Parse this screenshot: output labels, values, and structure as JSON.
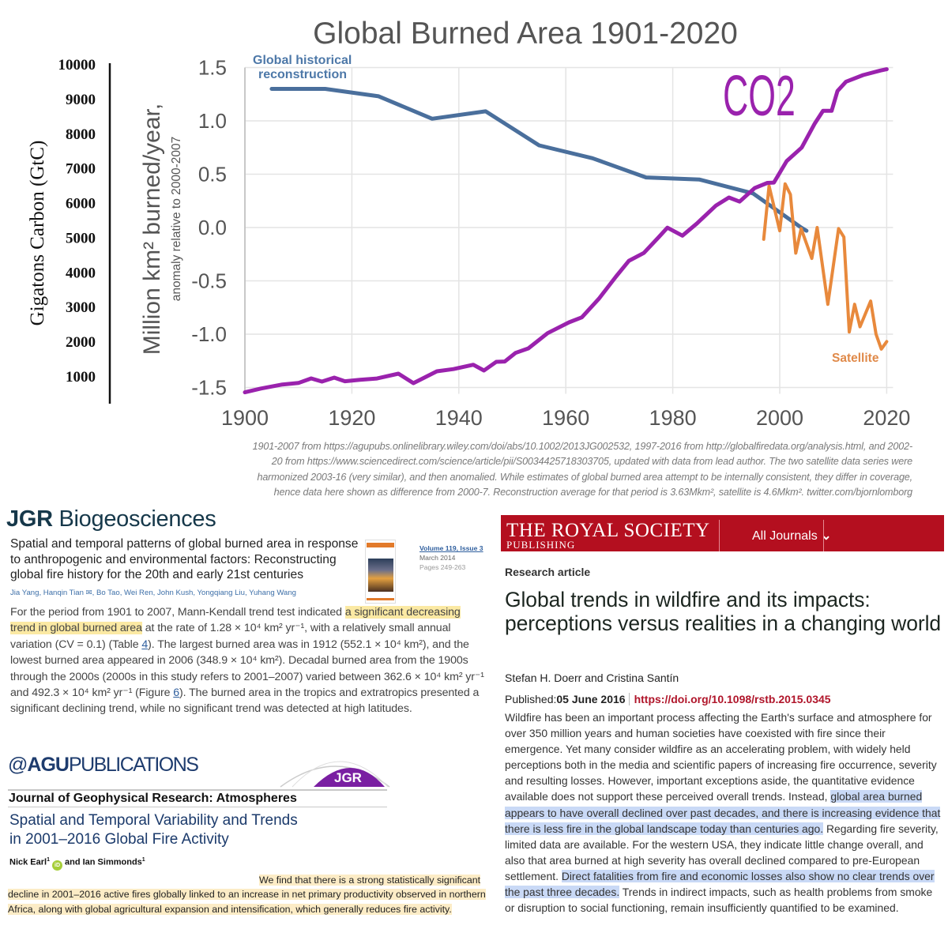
{
  "chart_data": {
    "type": "line",
    "title": "Global Burned Area 1901-2020",
    "xlabel": "",
    "ylabel": "Million km² burned/year,",
    "ylabel_sub": "anomaly relative to 2000-2007",
    "y2label": "Gigatons Carbon (GtC)",
    "xlim": [
      1900,
      2020
    ],
    "ylim": [
      -1.5,
      1.5
    ],
    "y2lim": [
      1000,
      10000
    ],
    "xticks": [
      "1900",
      "1920",
      "1940",
      "1960",
      "1980",
      "2000",
      "2020"
    ],
    "yticks": [
      "1.5",
      "1.0",
      "0.5",
      "0.0",
      "-0.5",
      "-1.0",
      "-1.5"
    ],
    "y2ticks": [
      "10000",
      "9000",
      "8000",
      "7000",
      "6000",
      "5000",
      "4000",
      "3000",
      "2000",
      "1000"
    ],
    "grid": true,
    "series": [
      {
        "name": "Global historical reconstruction",
        "label_lines": [
          "Global historical",
          "reconstruction"
        ],
        "axis": "left-anomaly",
        "color": "#4a6f9c",
        "x": [
          1905,
          1915,
          1925,
          1935,
          1945,
          1955,
          1965,
          1975,
          1985,
          1995,
          2004,
          2005
        ],
        "y": [
          1.3,
          1.3,
          1.23,
          1.02,
          1.09,
          0.77,
          0.65,
          0.47,
          0.45,
          0.32,
          0.0,
          -0.03
        ]
      },
      {
        "name": "Satellite",
        "axis": "left-anomaly",
        "color": "#e8893c",
        "x": [
          1997,
          1998,
          2000,
          2001,
          2002,
          2003,
          2004,
          2006,
          2007,
          2009,
          2011,
          2012,
          2013,
          2014,
          2015,
          2017,
          2018,
          2019,
          2020
        ],
        "y": [
          -0.11,
          0.39,
          -0.03,
          0.41,
          0.31,
          -0.24,
          -0.01,
          -0.29,
          0.0,
          -0.72,
          -0.01,
          -0.09,
          -0.98,
          -0.72,
          -0.93,
          -0.69,
          -1.0,
          -1.14,
          -1.07
        ]
      },
      {
        "name": "CO2",
        "axis": "gtc",
        "color": "#9a22ad",
        "x": [
          1900,
          1903,
          1907,
          1910,
          1912.4,
          1914.4,
          1916.7,
          1918.7,
          1921.5,
          1924.7,
          1928.7,
          1931.5,
          1935.9,
          1939,
          1942.7,
          1944.7,
          1947,
          1948.6,
          1950.6,
          1953,
          1956.6,
          1960.6,
          1963,
          1966.2,
          1969.4,
          1971.8,
          1974.6,
          1977.4,
          1979,
          1981.8,
          1984.5,
          1988.1,
          1990.5,
          1992.5,
          1995.3,
          1997.7,
          1998.9,
          2001.3,
          2004.1,
          2006.5,
          2008.1,
          2009.7,
          2010.8,
          2012.4,
          2015.6,
          2018.8,
          2020
        ],
        "y": [
          530,
          640,
          756,
          800,
          931,
          840,
          954,
          850,
          893,
          930,
          1068,
          795,
          1137,
          1200,
          1326,
          1160,
          1410,
          1420,
          1668,
          1797,
          2237,
          2550,
          2692,
          3232,
          3870,
          4325,
          4550,
          5010,
          5280,
          5050,
          5400,
          5920,
          6150,
          6030,
          6420,
          6570,
          6580,
          7200,
          7590,
          8270,
          8650,
          8650,
          9220,
          9490,
          9680,
          9810,
          9850
        ]
      }
    ],
    "annotation_co2": "CO2"
  },
  "caption": [
    "1901-2007 from https://agupubs.onlinelibrary.wiley.com/doi/abs/10.1002/2013JG002532, 1997-2016 from http://globalfiredata.org/analysis.html, and 2002-",
    "20 from https://www.sciencedirect.com/science/article/pii/S0034425718303705, updated with data from lead author. The two satellite data series were",
    "harmonized 2003-16 (very similar), and then anomalied. While estimates of global burned area attempt to be internally consistent, they differ in coverage,",
    "hence data here shown as difference from 2000-7. Reconstruction average for that period is 3.63Mkm², satellite is 4.6Mkm². twitter.com/bjornlomborg"
  ],
  "jgr_bio": {
    "journal_a": "JGR",
    "journal_b": " Biogeosciences",
    "title": "Spatial and temporal patterns of global burned area in response to anthropogenic and environmental factors: Reconstructing global fire history for the 20th and early 21st centuries",
    "volume": "Volume 119, Issue 3",
    "date": "March 2014",
    "pages": "Pages 249-263",
    "authors": "Jia Yang,  Hanqin Tian ✉,  Bo Tao,  Wei Ren,  John Kush,  Yongqiang Liu,  Yuhang Wang",
    "paragraph": [
      {
        "t": "For the period from 1901 to 2007, Mann-Kendall trend test indicated "
      },
      {
        "t": "a significant decreasing trend in global burned area",
        "hl": true
      },
      {
        "t": " at the rate of 1.28 × 10⁴ km² yr⁻¹, with a relatively small annual variation (CV = 0.1) (Table "
      },
      {
        "t": "4",
        "link": true
      },
      {
        "t": "). The largest burned area was in 1912 (552.1 × 10⁴ km²), and the lowest burned area appeared in 2006 (348.9 × 10⁴ km²). Decadal burned area from the 1900s through the 2000s (2000s in this study refers to 2001–2007) varied between 362.6 × 10⁴ km² yr⁻¹ and 492.3 × 10⁴ km² yr⁻¹ (Figure "
      },
      {
        "t": "6",
        "link": true
      },
      {
        "t": "). The burned area in the tropics and extratropics presented a significant declining trend, while no significant trend was detected at high latitudes."
      }
    ]
  },
  "agu": {
    "logo_a": "AGU",
    "logo_b": "PUBLICATIONS",
    "badge": "JGR",
    "journal": "Journal of Geophysical Research: Atmospheres",
    "title_1": "Spatial and Temporal Variability and Trends",
    "title_2": "in 2001–2016 Global Fire Activity",
    "author_1": "Nick Earl",
    "sup": "1",
    "orcid": "iD",
    "author_2": "and Ian Simmonds",
    "abstract": "We find that there is a strong statistically significant decline in 2001–2016 active fires globally linked to an increase in net primary productivity observed in northern Africa, along with global agricultural expansion and intensification, which generally reduces fire activity."
  },
  "royal": {
    "brand": "THE ROYAL SOCIETY",
    "brand_sub": "PUBLISHING",
    "menu": "All Journals",
    "type": "Research article",
    "title": "Global trends in wildfire and its impacts: perceptions versus realities in a changing world",
    "authors": "Stefan H. Doerr and Cristina Santín",
    "published_label": "Published:",
    "published_date": "05 June 2016",
    "doi": "https://doi.org/10.1098/rstb.2015.0345",
    "abstract": [
      {
        "t": "Wildfire has been an important process affecting the Earth's surface and atmosphere for over 350 million years and human societies have coexisted with fire since their emergence. Yet many consider wildfire as an accelerating problem, with widely held perceptions both in the media and scientific papers of increasing fire occurrence, severity and resulting losses. However, important exceptions aside, the quantitative evidence available does not support these perceived overall trends. Instead, "
      },
      {
        "t": "global area burned appears to have overall declined over past decades, and there is increasing evidence that there is less fire in the global landscape today than centuries ago.",
        "hl": true
      },
      {
        "t": " Regarding fire severity, limited data are available. For the western USA, they indicate little change overall, and also that area burned at high severity has overall declined compared to pre-European settlement. "
      },
      {
        "t": "Direct fatalities from fire and economic losses also show no clear trends over the past three decades.",
        "hl": true
      },
      {
        "t": " Trends in indirect impacts, such as health problems from smoke or disruption to social functioning, remain insufficiently quantified to be examined."
      }
    ]
  }
}
